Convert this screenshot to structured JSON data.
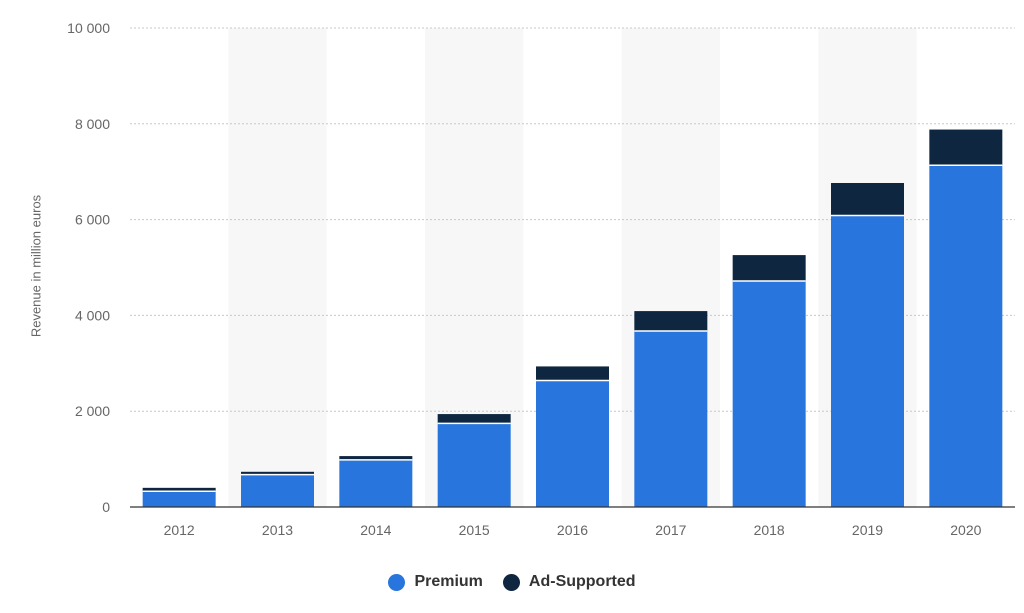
{
  "chart_data": {
    "type": "bar",
    "stacked": true,
    "categories": [
      "2012",
      "2013",
      "2014",
      "2015",
      "2016",
      "2017",
      "2018",
      "2019",
      "2020"
    ],
    "series": [
      {
        "name": "Premium",
        "color": "#2876dd",
        "values": [
          330,
          675,
          983,
          1745,
          2640,
          3674,
          4717,
          6086,
          7135
        ]
      },
      {
        "name": "Ad-Supported",
        "color": "#0f2641",
        "values": [
          70,
          60,
          80,
          195,
          295,
          416,
          542,
          678,
          745
        ]
      }
    ],
    "title": "",
    "xlabel": "",
    "ylabel": "Revenue in million euros",
    "ylim": [
      0,
      10000
    ],
    "yticks": [
      0,
      2000,
      4000,
      6000,
      8000,
      10000
    ],
    "ytick_labels": [
      "0",
      "2 000",
      "4 000",
      "6 000",
      "8 000",
      "10 000"
    ],
    "grid": true,
    "legend_position": "bottom-center"
  }
}
